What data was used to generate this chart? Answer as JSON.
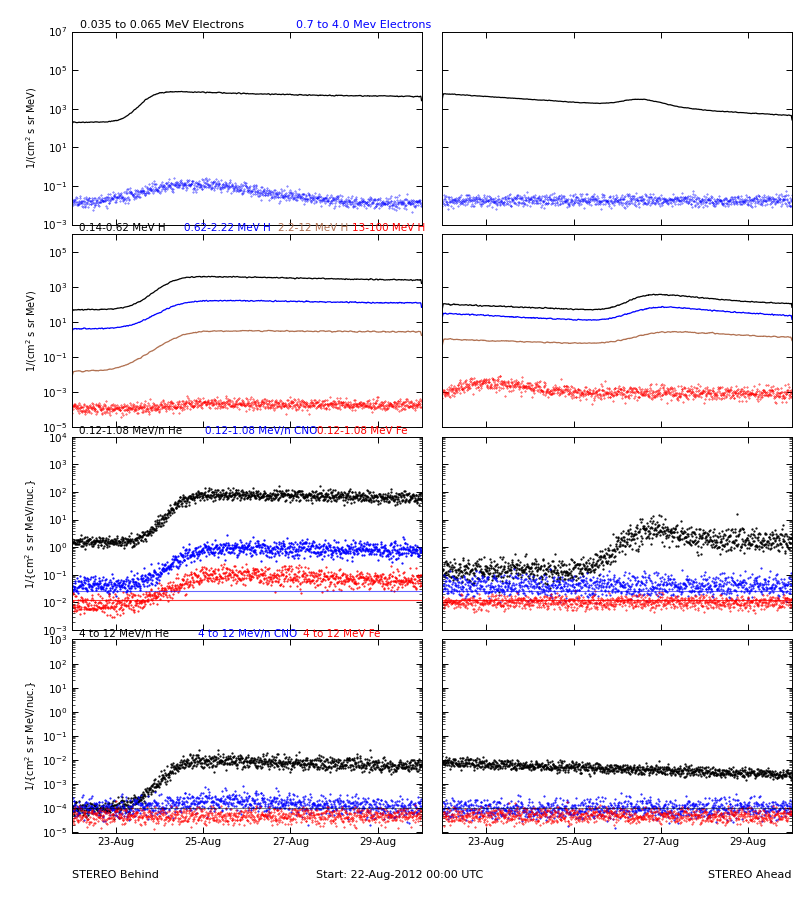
{
  "titles": {
    "r0_black": "0.035 to 0.065 MeV Electrons",
    "r0_blue": "0.7 to 4.0 Mev Electrons",
    "r1_black": "0.14-0.62 MeV H",
    "r1_blue": "0.62-2.22 MeV H",
    "r1_brown": "2.2-12 MeV H",
    "r1_red": "13-100 MeV H",
    "r2_black": "0.12-1.08 MeV/n He",
    "r2_blue": "0.12-1.08 MeV/n CNO",
    "r2_red": "0.12-1.08 MeV Fe",
    "r3_black": "4 to 12 MeV/n He",
    "r3_blue": "4 to 12 MeV/n CNO",
    "r3_red": "4 to 12 MeV Fe"
  },
  "xlabel_left": "STEREO Behind",
  "xlabel_center": "Start: 22-Aug-2012 00:00 UTC",
  "xlabel_right": "STEREO Ahead",
  "xtick_labels": [
    "23-Aug",
    "25-Aug",
    "27-Aug",
    "29-Aug"
  ],
  "ylabels": {
    "electrons": "1/(cm² s sr MeV)",
    "protons": "1/(cm² s sr MeV)",
    "heavy_low": "1/{cm² s sr MeV/nuc.}",
    "heavy_high": "1/{cm² s sr MeV/nuc.}"
  },
  "ylims": {
    "r0": [
      0.001,
      10000000.0
    ],
    "r1": [
      1e-05,
      1000000.0
    ],
    "r2": [
      0.001,
      10000.0
    ],
    "r3": [
      1e-05,
      1000.0
    ]
  },
  "ndays": 8,
  "seed": 42
}
